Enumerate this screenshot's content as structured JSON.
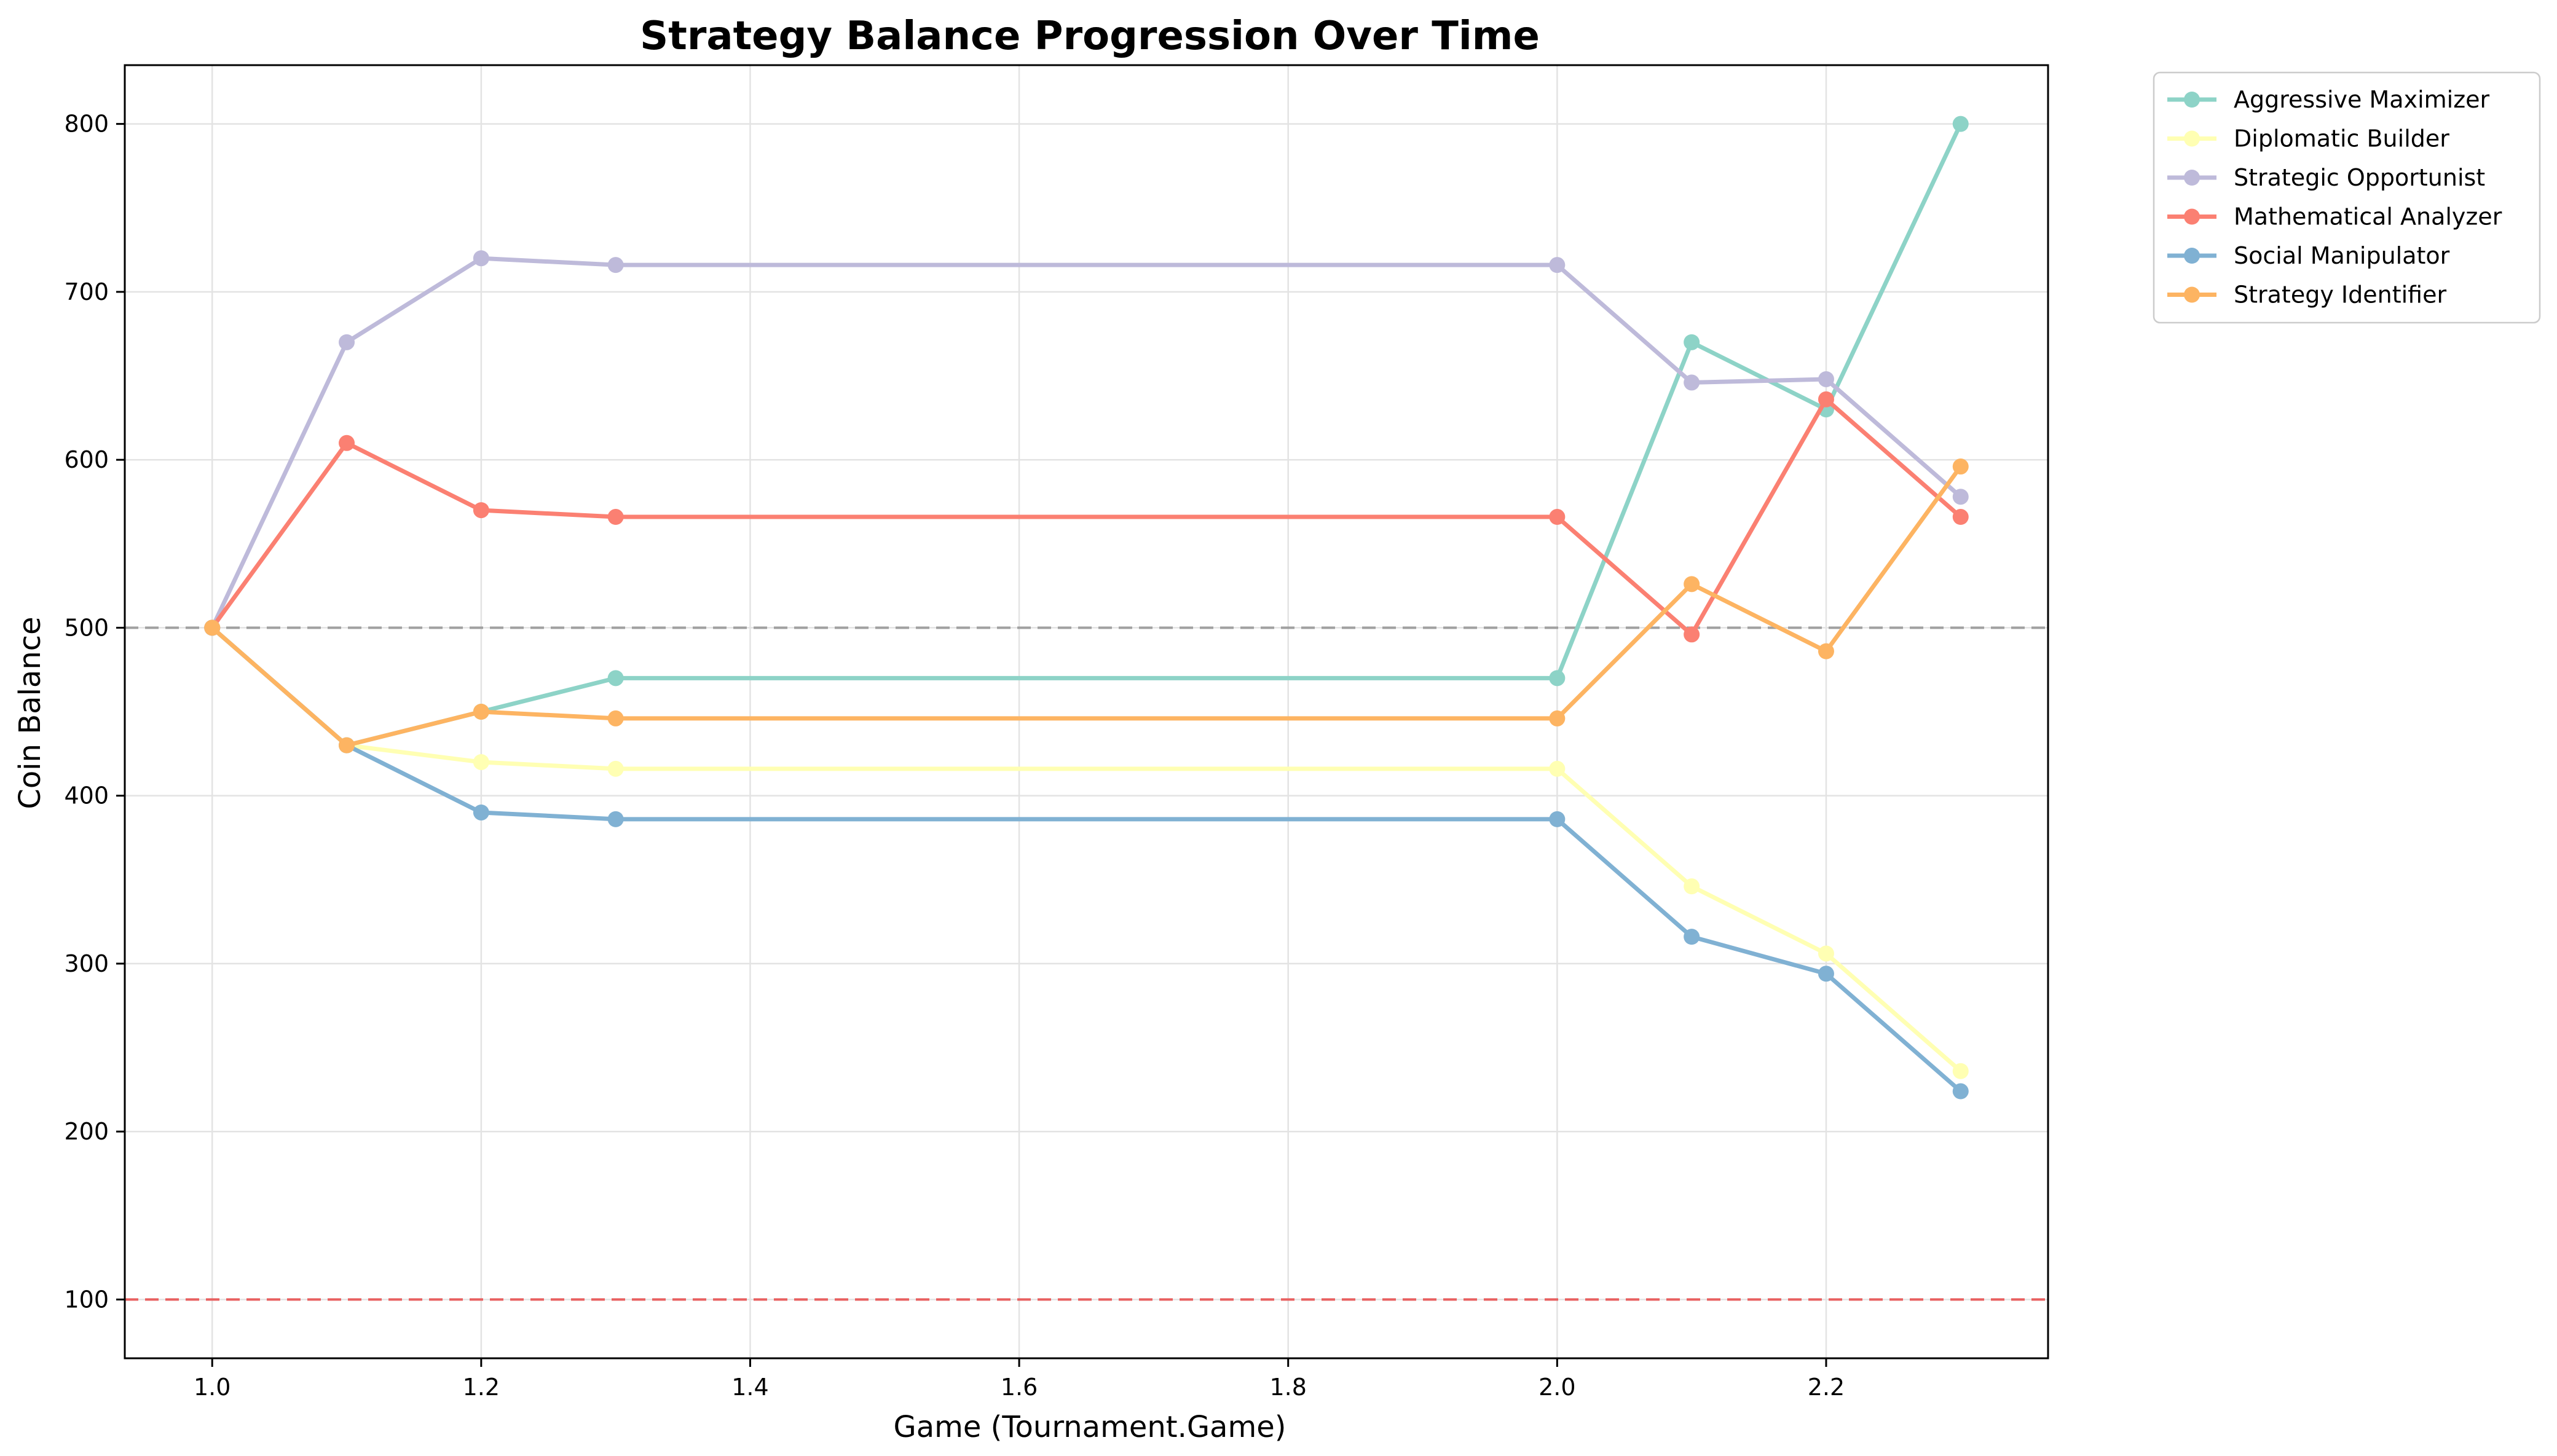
{
  "chart_data": {
    "type": "line",
    "title": "Strategy Balance Progression Over Time",
    "xlabel": "Game (Tournament.Game)",
    "ylabel": "Coin Balance",
    "xlim": [
      0.935,
      2.365
    ],
    "ylim": [
      65,
      835
    ],
    "xticks": [
      "1.0",
      "1.2",
      "1.4",
      "1.6",
      "1.8",
      "2.0",
      "2.2"
    ],
    "xtick_values": [
      1.0,
      1.2,
      1.4,
      1.6,
      1.8,
      2.0,
      2.2
    ],
    "yticks": [
      "100",
      "200",
      "300",
      "400",
      "500",
      "600",
      "700",
      "800"
    ],
    "ytick_values": [
      100,
      200,
      300,
      400,
      500,
      600,
      700,
      800
    ],
    "grid": true,
    "legend_position": "outside-top-right",
    "x": [
      1.0,
      1.1,
      1.2,
      1.3,
      2.0,
      2.1,
      2.2,
      2.3
    ],
    "series": [
      {
        "name": "Aggressive Maximizer",
        "color": "#8dd3c7",
        "values": [
          500,
          430,
          450,
          470,
          470,
          670,
          630,
          800
        ]
      },
      {
        "name": "Diplomatic Builder",
        "color": "#ffffb3",
        "values": [
          500,
          430,
          420,
          416,
          416,
          346,
          306,
          236
        ]
      },
      {
        "name": "Strategic Opportunist",
        "color": "#bebada",
        "values": [
          500,
          670,
          720,
          716,
          716,
          646,
          648,
          578
        ]
      },
      {
        "name": "Mathematical Analyzer",
        "color": "#fb8072",
        "values": [
          500,
          610,
          570,
          566,
          566,
          496,
          636,
          566
        ]
      },
      {
        "name": "Social Manipulator",
        "color": "#80b1d3",
        "values": [
          500,
          430,
          390,
          386,
          386,
          316,
          294,
          224
        ]
      },
      {
        "name": "Strategy Identifier",
        "color": "#fdb462",
        "values": [
          500,
          430,
          450,
          446,
          446,
          526,
          486,
          596
        ]
      }
    ],
    "reference_lines": [
      {
        "y": 500,
        "color": "#a0a0a0",
        "style": "dashed"
      },
      {
        "y": 100,
        "color": "#e86060",
        "style": "dashed"
      }
    ]
  }
}
